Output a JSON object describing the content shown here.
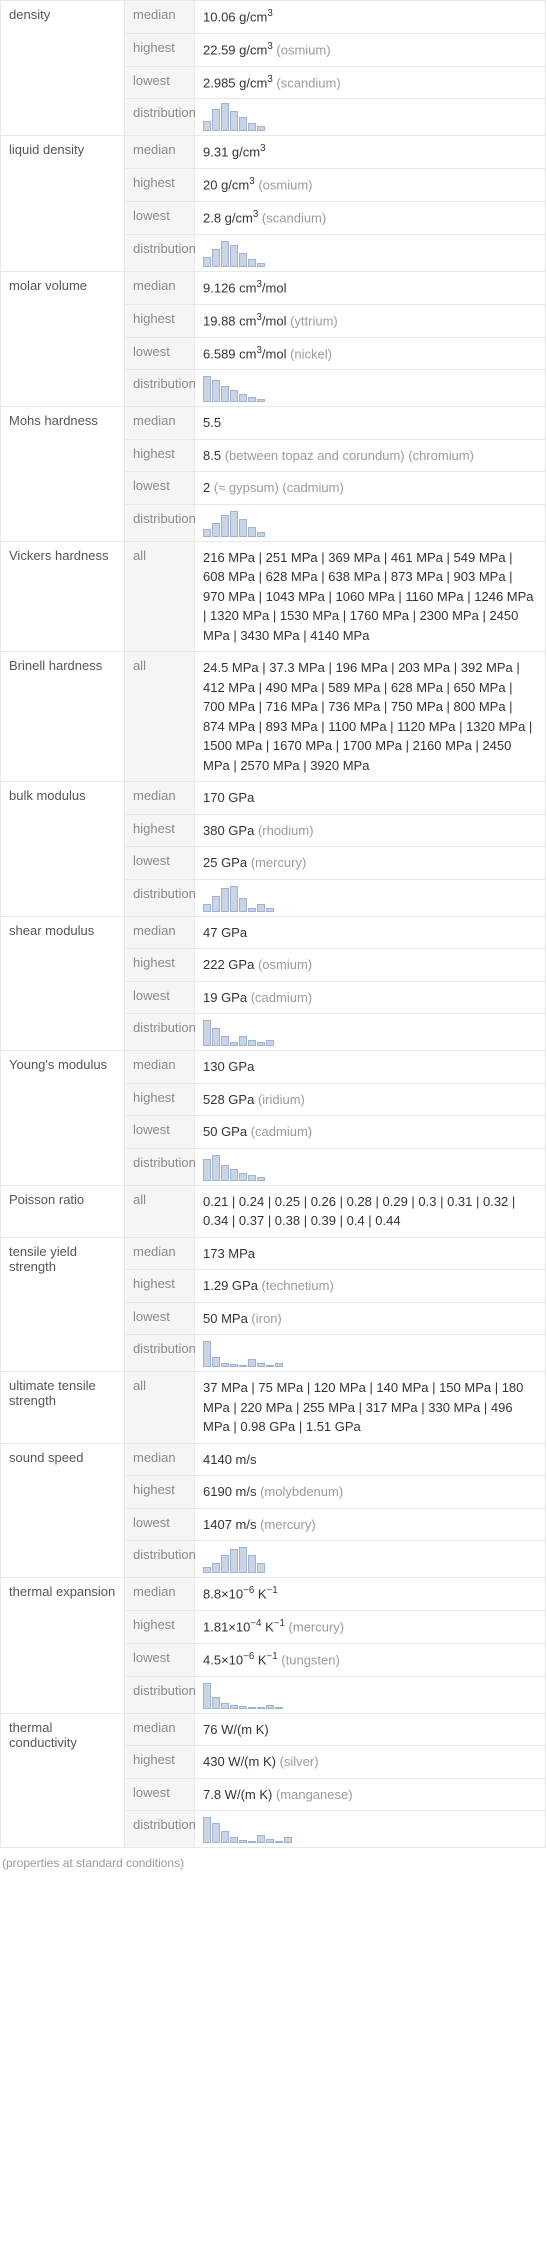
{
  "properties": [
    {
      "name": "density",
      "rows": [
        {
          "label": "median",
          "value": "10.06 g/cm",
          "sup": "3"
        },
        {
          "label": "highest",
          "value": "22.59 g/cm",
          "sup": "3",
          "qual": "(osmium)"
        },
        {
          "label": "lowest",
          "value": "2.985 g/cm",
          "sup": "3",
          "qual": "(scandium)"
        },
        {
          "label": "distribution",
          "dist": [
            10,
            22,
            28,
            20,
            14,
            8,
            5
          ]
        }
      ]
    },
    {
      "name": "liquid density",
      "rows": [
        {
          "label": "median",
          "value": "9.31 g/cm",
          "sup": "3"
        },
        {
          "label": "highest",
          "value": "20 g/cm",
          "sup": "3",
          "qual": "(osmium)"
        },
        {
          "label": "lowest",
          "value": "2.8 g/cm",
          "sup": "3",
          "qual": "(scandium)"
        },
        {
          "label": "distribution",
          "dist": [
            10,
            18,
            26,
            22,
            14,
            8,
            4
          ]
        }
      ]
    },
    {
      "name": "molar volume",
      "rows": [
        {
          "label": "median",
          "value": "9.126 cm",
          "sup": "3",
          "post": "/mol"
        },
        {
          "label": "highest",
          "value": "19.88 cm",
          "sup": "3",
          "post": "/mol",
          "qual": "(yttrium)"
        },
        {
          "label": "lowest",
          "value": "6.589 cm",
          "sup": "3",
          "post": "/mol",
          "qual": "(nickel)"
        },
        {
          "label": "distribution",
          "dist": [
            26,
            22,
            16,
            12,
            8,
            5,
            3
          ]
        }
      ]
    },
    {
      "name": "Mohs hardness",
      "rows": [
        {
          "label": "median",
          "value": "5.5"
        },
        {
          "label": "highest",
          "value": "8.5",
          "qual": "(between topaz and corundum) (chromium)"
        },
        {
          "label": "lowest",
          "value": "2",
          "qual": "(≈ gypsum) (cadmium)"
        },
        {
          "label": "distribution",
          "dist": [
            8,
            14,
            22,
            26,
            18,
            10,
            5
          ]
        }
      ]
    },
    {
      "name": "Vickers hardness",
      "rows": [
        {
          "label": "all",
          "value": "216 MPa  |  251 MPa  |  369 MPa  |  461 MPa  |  549 MPa  |  608 MPa  |  628 MPa  |  638 MPa  |  873 MPa  |  903 MPa  |  970 MPa  |  1043 MPa  |  1060 MPa  |  1160 MPa  |  1246 MPa  |  1320 MPa  |  1530 MPa  |  1760 MPa  |  2300 MPa  |  2450 MPa  |  3430 MPa  |  4140 MPa"
        }
      ]
    },
    {
      "name": "Brinell hardness",
      "rows": [
        {
          "label": "all",
          "value": "24.5 MPa  |  37.3 MPa  |  196 MPa  |  203 MPa  |  392 MPa  |  412 MPa  |  490 MPa  |  589 MPa  |  628 MPa  |  650 MPa  |  700 MPa  |  716 MPa  |  736 MPa  |  750 MPa  |  800 MPa  |  874 MPa  |  893 MPa  |  1100 MPa  |  1120 MPa  |  1320 MPa  |  1500 MPa  |  1670 MPa  |  1700 MPa  |  2160 MPa  |  2450 MPa  |  2570 MPa  |  3920 MPa"
        }
      ]
    },
    {
      "name": "bulk modulus",
      "rows": [
        {
          "label": "median",
          "value": "170 GPa"
        },
        {
          "label": "highest",
          "value": "380 GPa",
          "qual": "(rhodium)"
        },
        {
          "label": "lowest",
          "value": "25 GPa",
          "qual": "(mercury)"
        },
        {
          "label": "distribution",
          "dist": [
            8,
            16,
            24,
            26,
            14,
            4,
            8,
            4
          ]
        }
      ]
    },
    {
      "name": "shear modulus",
      "rows": [
        {
          "label": "median",
          "value": "47 GPa"
        },
        {
          "label": "highest",
          "value": "222 GPa",
          "qual": "(osmium)"
        },
        {
          "label": "lowest",
          "value": "19 GPa",
          "qual": "(cadmium)"
        },
        {
          "label": "distribution",
          "dist": [
            26,
            18,
            10,
            4,
            10,
            6,
            4,
            6
          ]
        }
      ]
    },
    {
      "name": "Young's modulus",
      "rows": [
        {
          "label": "median",
          "value": "130 GPa"
        },
        {
          "label": "highest",
          "value": "528 GPa",
          "qual": "(iridium)"
        },
        {
          "label": "lowest",
          "value": "50 GPa",
          "qual": "(cadmium)"
        },
        {
          "label": "distribution",
          "dist": [
            22,
            26,
            16,
            12,
            8,
            6,
            4
          ]
        }
      ]
    },
    {
      "name": "Poisson ratio",
      "rows": [
        {
          "label": "all",
          "value": "0.21  |  0.24  |  0.25  |  0.26  |  0.28  |  0.29  |  0.3  |  0.31  |  0.32  |  0.34  |  0.37  |  0.38  |  0.39  |  0.4  |  0.44"
        }
      ]
    },
    {
      "name": "tensile yield strength",
      "rows": [
        {
          "label": "median",
          "value": "173 MPa"
        },
        {
          "label": "highest",
          "value": "1.29 GPa",
          "qual": "(technetium)"
        },
        {
          "label": "lowest",
          "value": "50 MPa",
          "qual": "(iron)"
        },
        {
          "label": "distribution",
          "dist": [
            26,
            10,
            4,
            3,
            2,
            8,
            4,
            2,
            4
          ]
        }
      ]
    },
    {
      "name": "ultimate tensile strength",
      "rows": [
        {
          "label": "all",
          "value": "37 MPa  |  75 MPa  |  120 MPa  |  140 MPa  |  150 MPa  |  180 MPa  |  220 MPa  |  255 MPa  |  317 MPa  |  330 MPa  |  496 MPa  |  0.98 GPa  |  1.51 GPa"
        }
      ]
    },
    {
      "name": "sound speed",
      "rows": [
        {
          "label": "median",
          "value": "4140 m/s"
        },
        {
          "label": "highest",
          "value": "6190 m/s",
          "qual": "(molybdenum)"
        },
        {
          "label": "lowest",
          "value": "1407 m/s",
          "qual": "(mercury)"
        },
        {
          "label": "distribution",
          "dist": [
            6,
            10,
            18,
            24,
            26,
            18,
            10
          ]
        }
      ]
    },
    {
      "name": "thermal expansion",
      "rows": [
        {
          "label": "median",
          "html": "8.8×10<sup>−6</sup> K<sup>−1</sup>"
        },
        {
          "label": "highest",
          "html": "1.81×10<sup>−4</sup> K<sup>−1</sup>",
          "qual": "(mercury)"
        },
        {
          "label": "lowest",
          "html": "4.5×10<sup>−6</sup> K<sup>−1</sup>",
          "qual": "(tungsten)"
        },
        {
          "label": "distribution",
          "dist": [
            26,
            12,
            6,
            4,
            3,
            2,
            2,
            4,
            2
          ]
        }
      ]
    },
    {
      "name": "thermal conductivity",
      "rows": [
        {
          "label": "median",
          "value": "76 W/(m K)"
        },
        {
          "label": "highest",
          "value": "430 W/(m K)",
          "qual": "(silver)"
        },
        {
          "label": "lowest",
          "value": "7.8 W/(m K)",
          "qual": "(manganese)"
        },
        {
          "label": "distribution",
          "dist": [
            26,
            20,
            12,
            6,
            3,
            2,
            8,
            4,
            2,
            6
          ]
        }
      ]
    }
  ],
  "footnote": "(properties at standard conditions)",
  "colors": {
    "bar_fill": "#c9d4e6",
    "bar_border": "#9fb2d1",
    "label_bg": "#f5f5f5",
    "label_color": "#8a8a8a",
    "qual_color": "#9a9a9a",
    "border": "#e8e8e8"
  }
}
